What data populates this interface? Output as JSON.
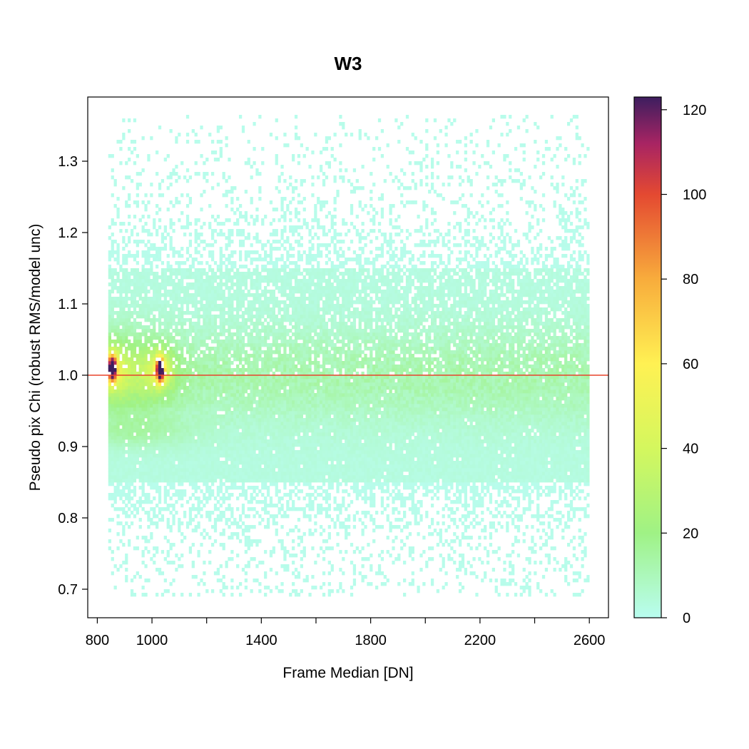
{
  "chart_data": {
    "type": "heatmap",
    "title": "W3",
    "xlabel": "Frame Median [DN]",
    "ylabel": "Pseudo pix Chi (robust RMS/model unc)",
    "xlim": [
      765,
      2670
    ],
    "ylim": [
      0.66,
      1.39
    ],
    "x_ticks": [
      800,
      1000,
      1400,
      1800,
      2200,
      2600
    ],
    "x_minor_ticks": [
      1200,
      1600,
      2000,
      2400
    ],
    "y_ticks": [
      0.7,
      0.8,
      0.9,
      1.0,
      1.1,
      1.2,
      1.3
    ],
    "reference_line": {
      "y": 1.0,
      "color": "#e8442c"
    },
    "bin_range": {
      "x": [
        840,
        2600
      ],
      "y": [
        0.69,
        1.365
      ]
    },
    "color_scale": {
      "min": 0,
      "max": 123,
      "ticks": [
        0,
        20,
        40,
        60,
        80,
        100,
        120
      ],
      "stops": [
        {
          "value": 0,
          "color": "#b9fdf0"
        },
        {
          "value": 20,
          "color": "#9ff285"
        },
        {
          "value": 40,
          "color": "#d4f75e"
        },
        {
          "value": 60,
          "color": "#fff153"
        },
        {
          "value": 80,
          "color": "#f8ac3c"
        },
        {
          "value": 100,
          "color": "#e44931"
        },
        {
          "value": 112,
          "color": "#a82463"
        },
        {
          "value": 123,
          "color": "#3d1e5f"
        }
      ]
    },
    "hotspots": [
      {
        "x": 855,
        "y": 1.01,
        "peak": 123
      },
      {
        "x": 1030,
        "y": 1.008,
        "peak": 118
      }
    ]
  }
}
